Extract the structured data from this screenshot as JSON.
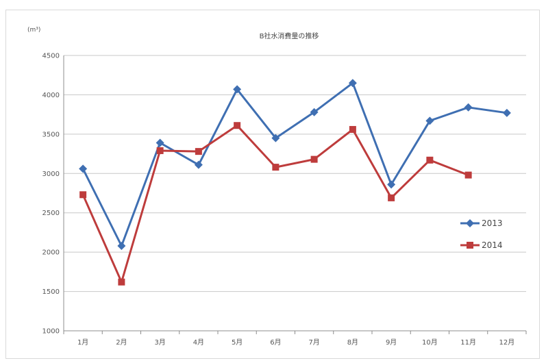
{
  "chart_data": {
    "type": "line",
    "title": "B社水消費量の推移",
    "unit_label": "(m³)",
    "categories": [
      "1月",
      "2月",
      "3月",
      "4月",
      "5月",
      "6月",
      "7月",
      "8月",
      "9月",
      "10月",
      "11月",
      "12月"
    ],
    "ylim": [
      1000,
      4500
    ],
    "yticks": [
      1000,
      1500,
      2000,
      2500,
      3000,
      3500,
      4000,
      4500
    ],
    "grid": true,
    "legend_position": "right",
    "series": [
      {
        "name": "2013",
        "color": "#3f6fb2",
        "marker": "diamond",
        "values": [
          3060,
          2080,
          3390,
          3110,
          4070,
          3450,
          3780,
          4150,
          2860,
          3670,
          3840,
          3770
        ]
      },
      {
        "name": "2014",
        "color": "#be3c3c",
        "marker": "square",
        "values": [
          2730,
          1620,
          3290,
          3280,
          3610,
          3080,
          3180,
          3560,
          2690,
          3170,
          2980,
          null
        ]
      }
    ]
  }
}
